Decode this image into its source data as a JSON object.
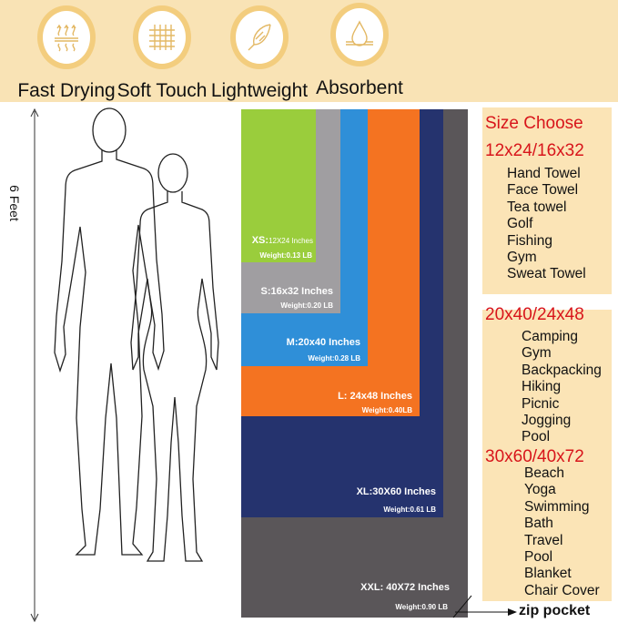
{
  "features": [
    {
      "label": "Fast Drying",
      "icon": "heat-waves-icon"
    },
    {
      "label": "Soft Touch",
      "icon": "fabric-weave-icon"
    },
    {
      "label": "Lightweight",
      "icon": "feather-icon"
    },
    {
      "label": "Absorbent",
      "icon": "water-drop-icon"
    }
  ],
  "height_label": "6 Feet",
  "towels": [
    {
      "size": "XXL: 40X72 Inches",
      "weight": "Weight:0.90 LB",
      "color": "#5a5659"
    },
    {
      "size": "XL:30X60 Inches",
      "weight": "Weight:0.61 LB",
      "color": "#25336e"
    },
    {
      "size": "L: 24x48 Inches",
      "weight": "Weight:0.40LB",
      "color": "#f47321"
    },
    {
      "size": "M:20x40 Inches",
      "weight": "Weight:0.28 LB",
      "color": "#2f8fd8"
    },
    {
      "size": "S:16x32 Inches",
      "weight": "Weight:0.20 LB",
      "color": "#a09ea1"
    },
    {
      "size_prefix": "XS:",
      "size": "12X24 Inches",
      "weight": "Weight:0.13 LB",
      "color": "#9acd3c"
    }
  ],
  "zip_label": "zip pocket",
  "size_title": "Size Choose",
  "groups": [
    {
      "heading": "12x24/16x32",
      "items": [
        "Hand Towel",
        "Face Towel",
        "Tea towel",
        "Golf",
        "Fishing",
        "Gym",
        "Sweat Towel"
      ]
    },
    {
      "heading": "20x40/24x48",
      "items": [
        "Camping",
        "Gym",
        "Backpacking",
        "Hiking",
        "Picnic",
        "Jogging",
        "Pool"
      ]
    },
    {
      "heading": "30x60/40x72",
      "items": [
        "Beach",
        "Yoga",
        "Swimming",
        "Bath",
        "Travel",
        "Pool",
        "Blanket",
        "Chair Cover"
      ]
    }
  ]
}
